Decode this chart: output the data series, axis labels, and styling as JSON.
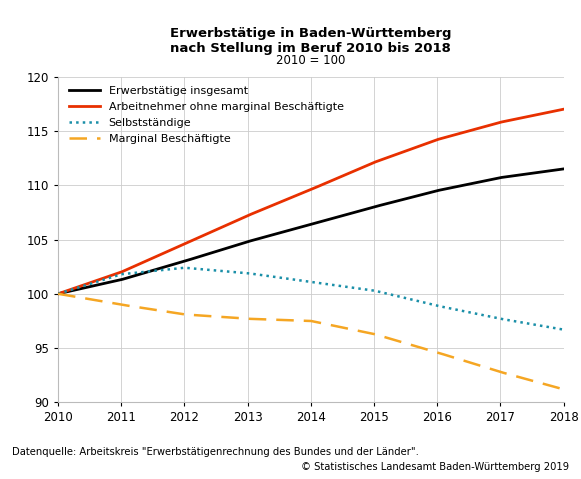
{
  "title_line1": "Erwerbstätige in Baden-Württemberg",
  "title_line2": "nach Stellung im Beruf 2010 bis 2018",
  "subtitle": "2010 = 100",
  "ylim": [
    90,
    120
  ],
  "xlim": [
    2010,
    2018
  ],
  "yticks": [
    90,
    95,
    100,
    105,
    110,
    115,
    120
  ],
  "xticks": [
    2010,
    2011,
    2012,
    2013,
    2014,
    2015,
    2016,
    2017,
    2018
  ],
  "years": [
    2010,
    2011,
    2012,
    2013,
    2014,
    2015,
    2016,
    2017,
    2018
  ],
  "erwerbstaetige": [
    100.0,
    101.3,
    103.0,
    104.8,
    106.4,
    108.0,
    109.5,
    110.7,
    111.5
  ],
  "arbeitnehmer": [
    100.0,
    102.0,
    104.6,
    107.2,
    109.6,
    112.1,
    114.2,
    115.8,
    117.0
  ],
  "selbststaendige": [
    100.0,
    101.8,
    102.4,
    101.9,
    101.1,
    100.3,
    98.9,
    97.7,
    96.7
  ],
  "marginal": [
    100.0,
    99.0,
    98.1,
    97.7,
    97.5,
    96.3,
    94.6,
    92.8,
    91.2
  ],
  "color_erwerbstaetige": "#000000",
  "color_arbeitnehmer": "#e83000",
  "color_selbststaendige": "#1a8fa8",
  "color_marginal": "#f5a623",
  "background_color": "#ffffff",
  "grid_color": "#cccccc",
  "legend_labels": [
    "Erwerbstätige insgesamt",
    "Arbeitnehmer ohne marginal Beschäftigte",
    "Selbstständige",
    "Marginal Beschäftigte"
  ],
  "footnote1": "Datenquelle: Arbeitskreis \"Erwerbstätigenrechnung des Bundes und der Länder\".",
  "footnote2": "© Statistisches Landesamt Baden-Württemberg 2019"
}
